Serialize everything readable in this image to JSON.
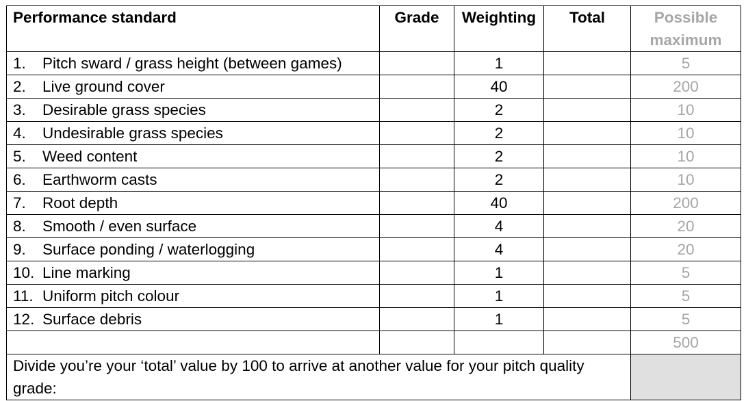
{
  "headers": {
    "standard": "Performance standard",
    "grade": "Grade",
    "weighting": "Weighting",
    "total": "Total",
    "possible_maximum": "Possible maximum"
  },
  "rows": [
    {
      "number": "1.",
      "label": "Pitch sward / grass height (between games)",
      "weighting": "1",
      "maximum": "5"
    },
    {
      "number": "2.",
      "label": "Live ground cover",
      "weighting": "40",
      "maximum": "200"
    },
    {
      "number": "3.",
      "label": "Desirable grass species",
      "weighting": "2",
      "maximum": "10"
    },
    {
      "number": "4.",
      "label": "Undesirable grass species",
      "weighting": "2",
      "maximum": "10"
    },
    {
      "number": "5.",
      "label": "Weed content",
      "weighting": "2",
      "maximum": "10"
    },
    {
      "number": "6.",
      "label": "Earthworm casts",
      "weighting": "2",
      "maximum": "10"
    },
    {
      "number": "7.",
      "label": "Root depth",
      "weighting": "40",
      "maximum": "200"
    },
    {
      "number": "8.",
      "label": "Smooth / even surface",
      "weighting": "4",
      "maximum": "20"
    },
    {
      "number": "9.",
      "label": "Surface ponding / waterlogging",
      "weighting": "4",
      "maximum": "20"
    },
    {
      "number": "10.",
      "label": "Line marking",
      "weighting": "1",
      "maximum": "5"
    },
    {
      "number": "11.",
      "label": "Uniform pitch colour",
      "weighting": "1",
      "maximum": "5"
    },
    {
      "number": "12.",
      "label": "Surface debris",
      "weighting": "1",
      "maximum": "5"
    }
  ],
  "sum_row": {
    "maximum": "500"
  },
  "footer": {
    "instruction": "Divide you’re your ‘total’ value by 100 to arrive at another value for your pitch quality grade:"
  },
  "colors": {
    "muted_text": "#a6a6a6",
    "grey_cell": "#e0e0e0"
  }
}
